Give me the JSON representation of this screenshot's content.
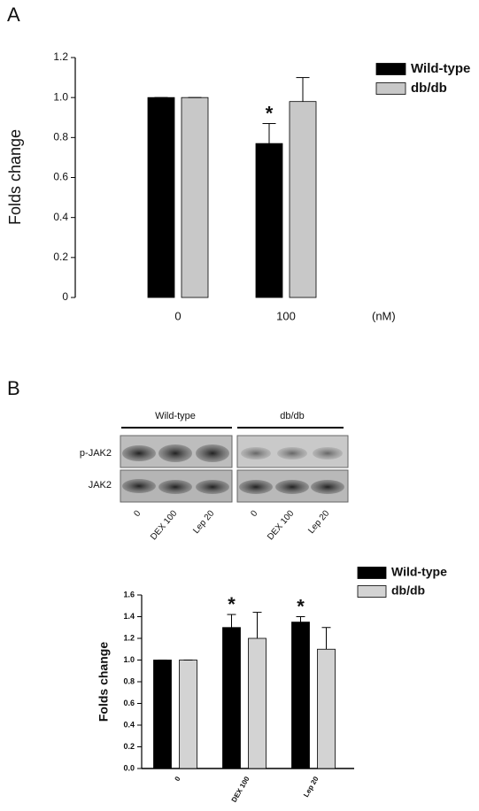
{
  "panels": {
    "a": "A",
    "b": "B"
  },
  "blot": {
    "groups": [
      "Wild-type",
      "db/db"
    ],
    "rows": [
      "p-JAK2",
      "JAK2"
    ],
    "lanes": [
      "0",
      "DEX 100",
      "Lep 20",
      "0",
      "DEX 100",
      "Lep 20"
    ]
  },
  "chart_data": [
    {
      "type": "bar",
      "y_label": "Folds change",
      "x_unit": "(nM)",
      "categories": [
        "0",
        "100"
      ],
      "series": [
        {
          "name": "Wild-type",
          "color": "#000000",
          "values": [
            1.0,
            0.77
          ],
          "errors": [
            0,
            0.1
          ],
          "markers": [
            null,
            "*"
          ]
        },
        {
          "name": "db/db",
          "color": "#c8c8c8",
          "values": [
            1.0,
            0.98
          ],
          "errors": [
            0,
            0.12
          ],
          "markers": [
            null,
            null
          ]
        }
      ],
      "ylim": [
        0,
        1.2
      ],
      "yticks": [
        0,
        0.2,
        0.4,
        0.6,
        0.8,
        {
          "value": 1,
          "label": "1.0"
        },
        1.2
      ]
    },
    {
      "type": "bar",
      "y_label": "Folds change",
      "categories": [
        "0",
        "DEX 100",
        "Lep 20"
      ],
      "series": [
        {
          "name": "Wild-type",
          "color": "#000000",
          "values": [
            1.0,
            1.3,
            1.35
          ],
          "errors": [
            0,
            0.12,
            0.05
          ],
          "markers": [
            null,
            "*",
            "*"
          ]
        },
        {
          "name": "db/db",
          "color": "#d3d3d3",
          "values": [
            1.0,
            1.2,
            1.1
          ],
          "errors": [
            0,
            0.24,
            0.2
          ],
          "markers": [
            null,
            null,
            null
          ]
        }
      ],
      "ylim": [
        0,
        1.6
      ],
      "yticks": [
        {
          "value": 0,
          "label": "0.0"
        },
        0.2,
        0.4,
        0.6,
        0.8,
        {
          "value": 1,
          "label": "1.0"
        },
        1.2,
        1.4,
        1.6
      ]
    }
  ]
}
